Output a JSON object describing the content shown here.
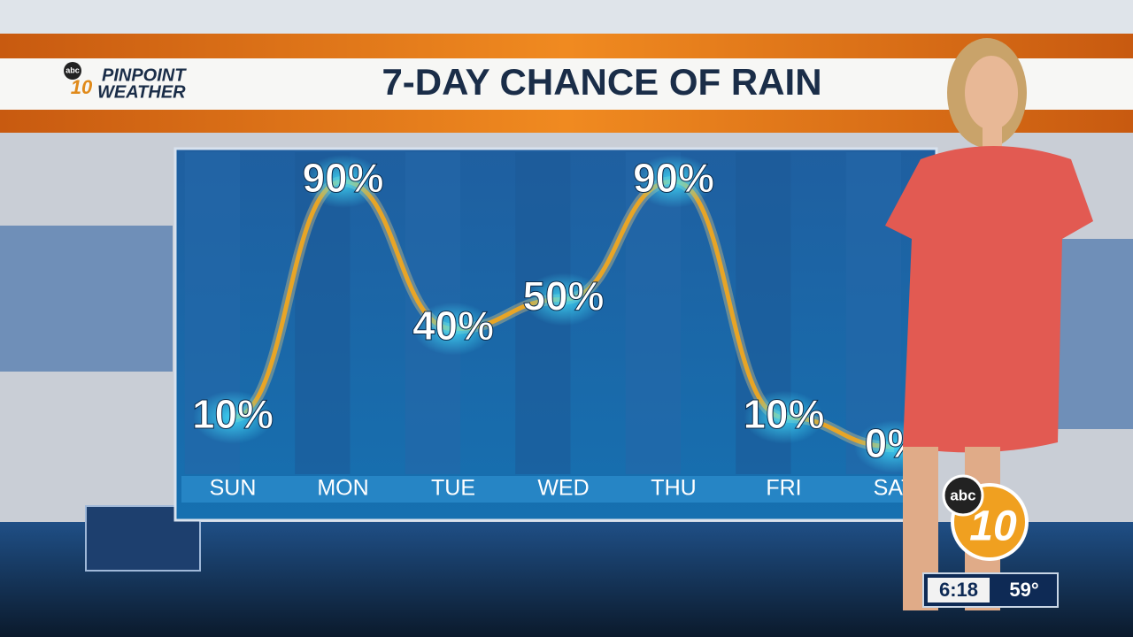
{
  "logo": {
    "network": "abc",
    "station": "10",
    "brand": "PINPOINT",
    "brand2": "WEATHER"
  },
  "clock": {
    "time": "6:18",
    "temperature": "59°"
  },
  "chart_data": {
    "type": "line",
    "title": "7-DAY CHANCE OF RAIN",
    "categories": [
      "SUN",
      "MON",
      "TUE",
      "WED",
      "THU",
      "FRI",
      "SAT"
    ],
    "values": [
      10,
      90,
      40,
      50,
      90,
      10,
      0
    ],
    "value_labels": [
      "10%",
      "90%",
      "40%",
      "50%",
      "90%",
      "10%",
      "0%"
    ],
    "color": "#e8a526"
  }
}
